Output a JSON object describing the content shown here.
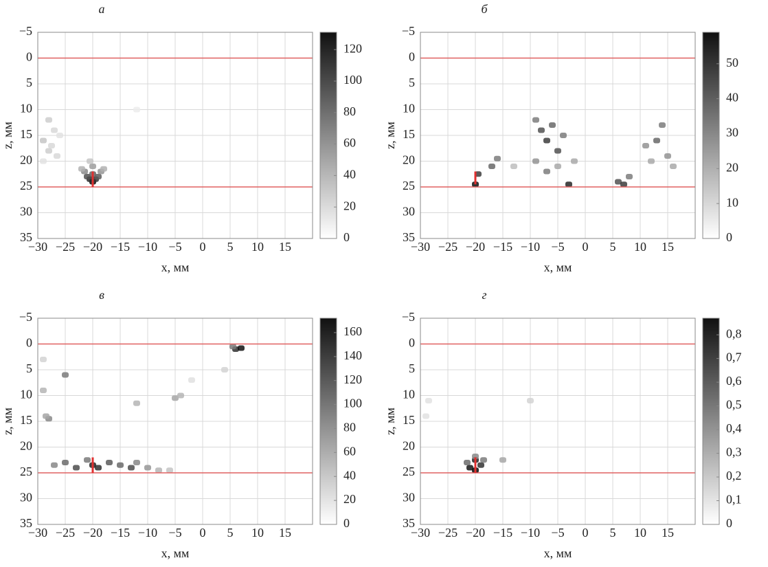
{
  "chart_data": [
    {
      "type": "heatmap",
      "title": "а",
      "xlabel": "x, мм",
      "ylabel": "z, мм",
      "xlim": [
        -30,
        20
      ],
      "ylim": [
        35,
        -5
      ],
      "xticks": [
        {
          "value": -30,
          "label": "−30"
        },
        {
          "value": -25,
          "label": "−25"
        },
        {
          "value": -20,
          "label": "−20"
        },
        {
          "value": -15,
          "label": "−15"
        },
        {
          "value": -10,
          "label": "−10"
        },
        {
          "value": -5,
          "label": "−5"
        },
        0,
        5,
        10,
        15
      ],
      "yticks": [
        {
          "value": -5,
          "label": "−5"
        },
        0,
        5,
        10,
        15,
        20,
        25,
        30,
        35
      ],
      "clim": [
        0,
        131
      ],
      "cticks": [
        0,
        20,
        40,
        60,
        80,
        100,
        120
      ],
      "hlines": [
        0,
        25
      ],
      "line_color": "#e06060",
      "marker": {
        "x": -20,
        "y": [
          22,
          25
        ]
      },
      "points": {
        "x": [
          -20,
          -20.5,
          -19.5,
          -21,
          -19,
          -20,
          -21.5,
          -18.5,
          -20,
          -22,
          -18,
          -20.5,
          -28,
          -27,
          -29,
          -26,
          -28,
          -26.5,
          -29,
          -27.5,
          -12
        ],
        "y": [
          24,
          23.5,
          23.5,
          23,
          23,
          22.5,
          22,
          22,
          21,
          21.5,
          21.5,
          20,
          12,
          14,
          16,
          15,
          18,
          19,
          20,
          17,
          10
        ],
        "values": [
          125,
          110,
          105,
          90,
          85,
          80,
          60,
          55,
          50,
          40,
          40,
          30,
          25,
          20,
          30,
          15,
          25,
          20,
          15,
          20,
          10
        ]
      }
    },
    {
      "type": "heatmap",
      "title": "б",
      "xlabel": "x, мм",
      "ylabel": "z, мм",
      "xlim": [
        -30,
        20
      ],
      "ylim": [
        35,
        -5
      ],
      "xticks": [
        {
          "value": -30,
          "label": "−30"
        },
        {
          "value": -25,
          "label": "−25"
        },
        {
          "value": -20,
          "label": "−20"
        },
        {
          "value": -15,
          "label": "−15"
        },
        {
          "value": -10,
          "label": "−10"
        },
        {
          "value": -5,
          "label": "−5"
        },
        0,
        5,
        10,
        15
      ],
      "yticks": [
        {
          "value": -5,
          "label": "−5"
        },
        0,
        5,
        10,
        15,
        20,
        25,
        30,
        35
      ],
      "clim": [
        0,
        59
      ],
      "cticks": [
        0,
        10,
        20,
        30,
        40,
        50
      ],
      "hlines": [
        0,
        25
      ],
      "line_color": "#e06060",
      "marker": {
        "x": -20,
        "y": [
          22,
          24.5
        ]
      },
      "points": {
        "x": [
          -20,
          -19.5,
          -17,
          -16,
          -9,
          -8,
          -7,
          -6,
          -5,
          -4,
          -9,
          -7,
          -5,
          -3,
          -2,
          6,
          7,
          8,
          11,
          13,
          14,
          15,
          16,
          12,
          -13
        ],
        "y": [
          24.5,
          22.5,
          21,
          19.5,
          12,
          14,
          16,
          13,
          18,
          15,
          20,
          22,
          21,
          24.5,
          20,
          24,
          24.5,
          23,
          17,
          16,
          13,
          19,
          21,
          20,
          21
        ],
        "values": [
          55,
          45,
          35,
          30,
          30,
          40,
          45,
          35,
          40,
          30,
          25,
          30,
          20,
          50,
          20,
          40,
          45,
          30,
          25,
          35,
          30,
          25,
          20,
          20,
          15
        ]
      }
    },
    {
      "type": "heatmap",
      "title": "в",
      "xlabel": "x, мм",
      "ylabel": "z, мм",
      "xlim": [
        -30,
        20
      ],
      "ylim": [
        35,
        -5
      ],
      "xticks": [
        {
          "value": -30,
          "label": "−30"
        },
        {
          "value": -25,
          "label": "−25"
        },
        {
          "value": -20,
          "label": "−20"
        },
        {
          "value": -15,
          "label": "−15"
        },
        {
          "value": -10,
          "label": "−10"
        },
        {
          "value": -5,
          "label": "−5"
        },
        0,
        5,
        10,
        15
      ],
      "yticks": [
        {
          "value": -5,
          "label": "−5"
        },
        0,
        5,
        10,
        15,
        20,
        25,
        30,
        35
      ],
      "clim": [
        0,
        172
      ],
      "cticks": [
        0,
        20,
        40,
        60,
        80,
        100,
        120,
        140,
        160
      ],
      "hlines": [
        0,
        25
      ],
      "line_color": "#e06060",
      "marker": {
        "x": -20,
        "y": [
          22,
          25
        ]
      },
      "points": {
        "x": [
          -27,
          -25,
          -23,
          -21,
          -20,
          -19,
          -17,
          -15,
          -13,
          -12,
          -10,
          -8,
          -6,
          6,
          7,
          5.5,
          -25,
          -29,
          -28,
          -28.5,
          -29,
          -5,
          -4,
          -12,
          4,
          -2
        ],
        "y": [
          23.5,
          23,
          24,
          22.5,
          23.5,
          24,
          23,
          23.5,
          24,
          23,
          24,
          24.5,
          24.5,
          1,
          0.8,
          0.5,
          6,
          9,
          14.5,
          14,
          3,
          10.5,
          10,
          11.5,
          5,
          7
        ],
        "values": [
          80,
          100,
          120,
          90,
          150,
          140,
          110,
          100,
          120,
          80,
          70,
          50,
          40,
          140,
          160,
          90,
          90,
          50,
          80,
          60,
          30,
          60,
          50,
          50,
          30,
          20
        ]
      }
    },
    {
      "type": "heatmap",
      "title": "г",
      "xlabel": "x, мм",
      "ylabel": "z, мм",
      "xlim": [
        -30,
        20
      ],
      "ylim": [
        35,
        -5
      ],
      "xticks": [
        {
          "value": -30,
          "label": "−30"
        },
        {
          "value": -25,
          "label": "−25"
        },
        {
          "value": -20,
          "label": "−20"
        },
        {
          "value": -15,
          "label": "−15"
        },
        {
          "value": -10,
          "label": "−10"
        },
        {
          "value": -5,
          "label": "−5"
        },
        0,
        5,
        10,
        15
      ],
      "yticks": [
        {
          "value": -5,
          "label": "−5"
        },
        0,
        5,
        10,
        15,
        20,
        25,
        30,
        35
      ],
      "clim": [
        0,
        0.87
      ],
      "cticks": [
        0,
        {
          "value": 0.1,
          "label": "0,1"
        },
        {
          "value": 0.2,
          "label": "0,2"
        },
        {
          "value": 0.3,
          "label": "0,3"
        },
        {
          "value": 0.4,
          "label": "0,4"
        },
        {
          "value": 0.5,
          "label": "0,5"
        },
        {
          "value": 0.6,
          "label": "0,6"
        },
        {
          "value": 0.7,
          "label": "0,7"
        },
        {
          "value": 0.8,
          "label": "0,8"
        }
      ],
      "hlines": [
        0,
        25
      ],
      "line_color": "#e06060",
      "marker": {
        "x": -20,
        "y": [
          22,
          25
        ]
      },
      "points": {
        "x": [
          -20,
          -21,
          -19,
          -20,
          -21.5,
          -18.5,
          -20,
          -15,
          -10,
          -29,
          -28.5
        ],
        "y": [
          24.5,
          24,
          23.5,
          22.5,
          23,
          22.5,
          21.8,
          22.5,
          11,
          14,
          11
        ],
        "values": [
          0.85,
          0.8,
          0.7,
          0.75,
          0.5,
          0.45,
          0.4,
          0.3,
          0.15,
          0.1,
          0.1
        ]
      }
    }
  ]
}
